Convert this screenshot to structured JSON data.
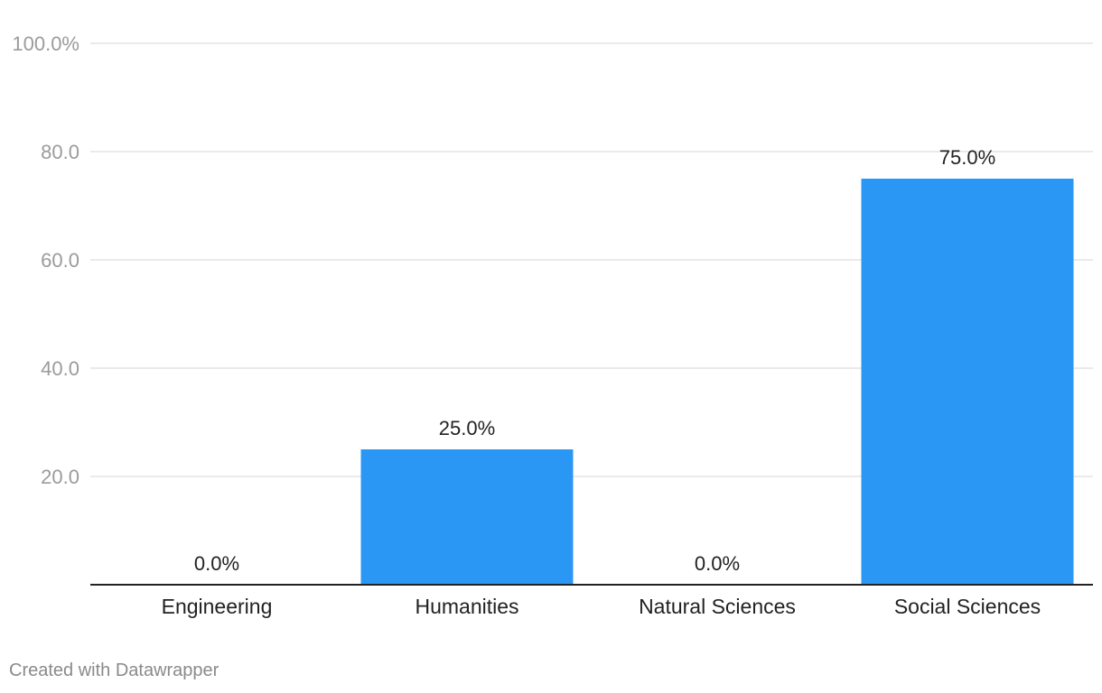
{
  "chart_data": {
    "type": "bar",
    "categories": [
      "Engineering",
      "Humanities",
      "Natural Sciences",
      "Social Sciences"
    ],
    "values": [
      0,
      25,
      0,
      75
    ],
    "value_labels": [
      "0.0%",
      "25.0%",
      "0.0%",
      "75.0%"
    ],
    "ylim": [
      0,
      100
    ],
    "yticks": [
      20,
      40,
      60,
      80,
      100
    ],
    "ytick_labels": [
      "20.0",
      "40.0",
      "60.0",
      "80.0",
      "100.0%"
    ],
    "grid": true,
    "bar_color": "#2b97f5"
  },
  "footer": {
    "credit": "Created with Datawrapper"
  }
}
